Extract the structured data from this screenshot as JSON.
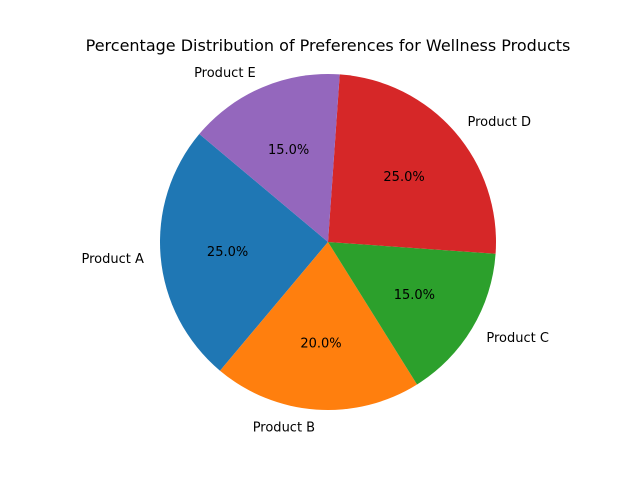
{
  "chart_data": {
    "type": "pie",
    "title": "Percentage Distribution of Preferences for Wellness Products",
    "categories": [
      "Product A",
      "Product B",
      "Product C",
      "Product D",
      "Product E"
    ],
    "values": [
      25.0,
      20.0,
      15.0,
      25.0,
      15.0
    ],
    "value_labels": [
      "25.0%",
      "20.0%",
      "15.0%",
      "25.0%",
      "15.0%"
    ],
    "colors": [
      "#1f77b4",
      "#ff7f0e",
      "#2ca02c",
      "#d62728",
      "#9467bd"
    ],
    "start_angle_deg": 140,
    "direction": "counterclockwise",
    "legend": "none"
  }
}
